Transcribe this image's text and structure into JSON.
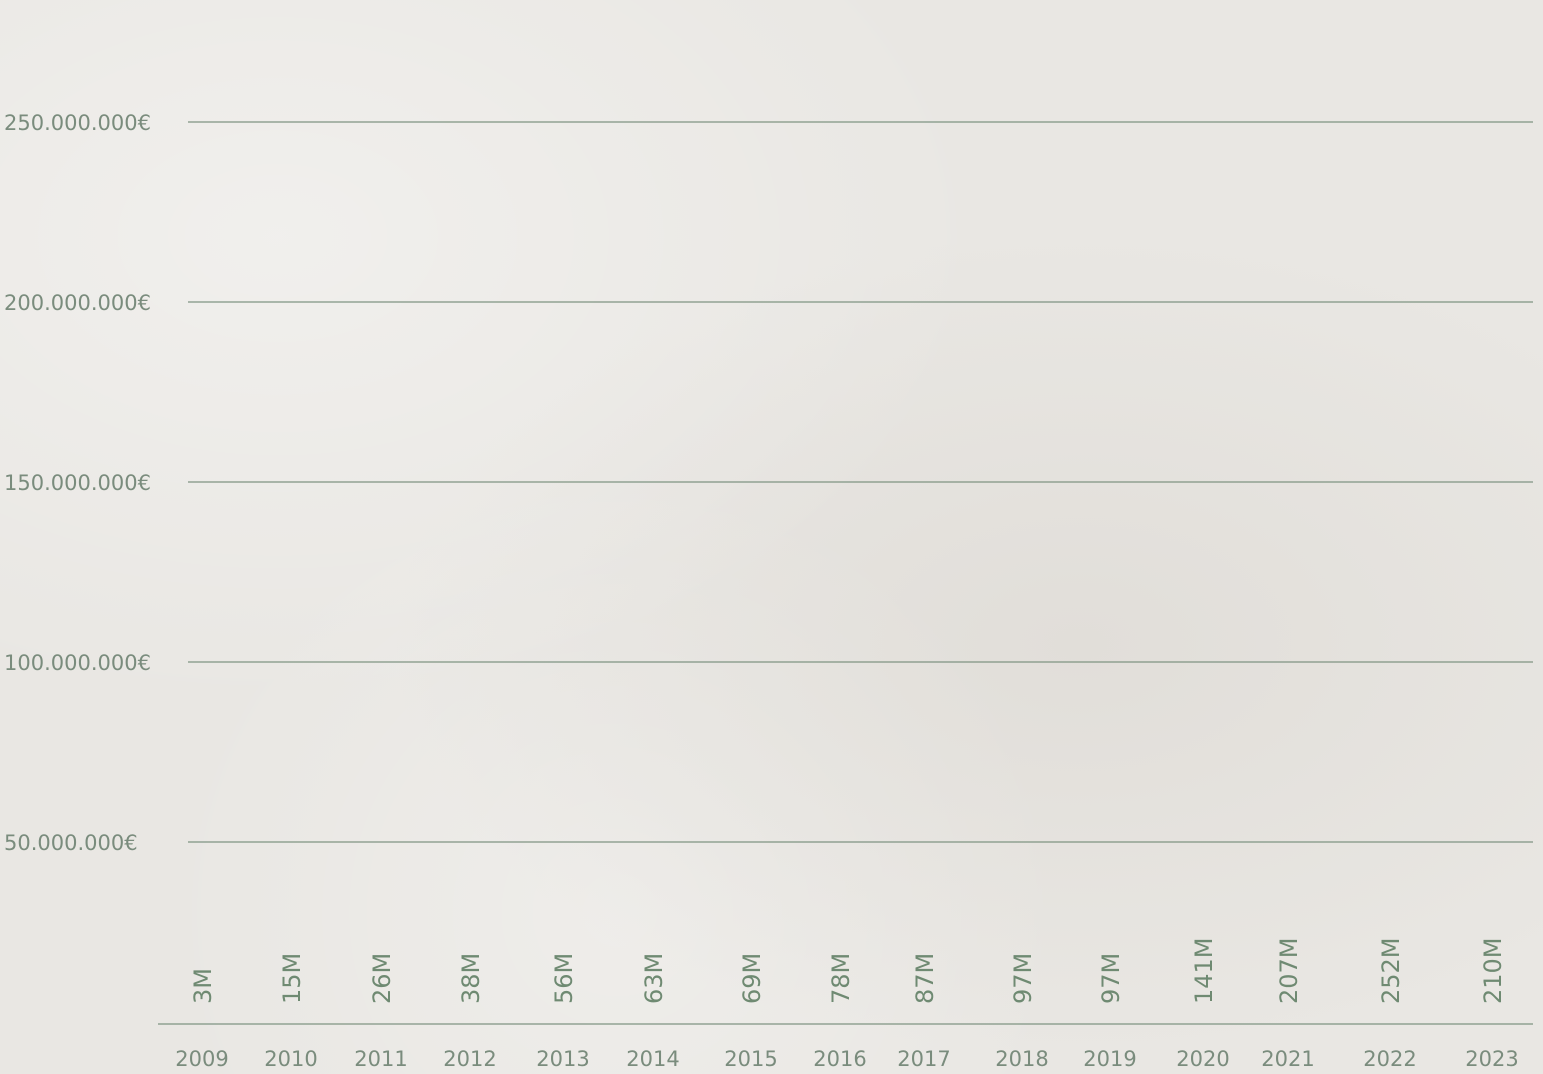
{
  "chart_data": {
    "type": "bar",
    "categories": [
      "2009",
      "2010",
      "2011",
      "2012",
      "2013",
      "2014",
      "2015",
      "2016",
      "2017",
      "2018",
      "2019",
      "2020",
      "2021",
      "2022",
      "2023"
    ],
    "values": [
      3,
      15,
      26,
      38,
      56,
      63,
      69,
      78,
      87,
      97,
      97,
      141,
      207,
      252,
      210
    ],
    "data_labels": [
      "3M",
      "15M",
      "26M",
      "38M",
      "56M",
      "63M",
      "69M",
      "78M",
      "87M",
      "97M",
      "97M",
      "141M",
      "207M",
      "252M",
      "210M"
    ],
    "y_ticks": [
      {
        "value": 50000000,
        "label": "50.000.000€"
      },
      {
        "value": 100000000,
        "label": "100.000.000€"
      },
      {
        "value": 150000000,
        "label": "150.000.000€"
      },
      {
        "value": 200000000,
        "label": "200.000.000€"
      },
      {
        "value": 250000000,
        "label": "250.000.000€"
      }
    ],
    "ylim": [
      0,
      270000000
    ],
    "title": "",
    "xlabel": "",
    "ylabel": "",
    "grid": true,
    "legend": "none",
    "colors": {
      "bar": "#6e6e6e",
      "label": "#6f8a72",
      "grid": "#7f9482",
      "tick_text": "#7a8c7d"
    }
  }
}
